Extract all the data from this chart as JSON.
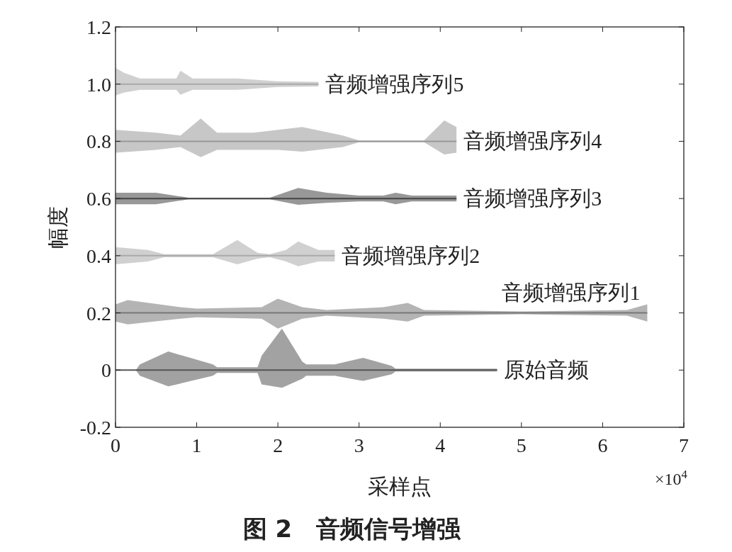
{
  "chart_data": {
    "type": "line",
    "title": "图 2　音频信号增强",
    "xlabel": "采样点",
    "ylabel": "幅度",
    "annotations": [
      "×10$^{4}$"
    ],
    "xlim": [
      0,
      7
    ],
    "ylim": [
      -0.2,
      1.2
    ],
    "xticks": [
      0,
      1,
      2,
      3,
      4,
      5,
      6,
      7
    ],
    "yticks": [
      -0.2,
      0,
      0.2,
      0.4,
      0.6,
      0.8,
      {
        "value": 1,
        "label": "1.0"
      },
      1.2
    ],
    "grid": false,
    "marker": "none",
    "line_style": "solid",
    "series": [
      {
        "name": "原始音频",
        "color": "#555555",
        "x": [
          0,
          0.25,
          0.3,
          0.65,
          1.2,
          1.25,
          1.75,
          1.8,
          2.05,
          2.3,
          2.35,
          2.7,
          3.05,
          3.4,
          3.45,
          4.7
        ],
        "values": [
          0,
          0,
          0,
          0,
          0,
          0,
          0,
          0,
          0,
          0,
          0,
          0,
          0,
          0,
          0,
          0
        ],
        "upper": [
          0,
          0,
          0.02,
          0.065,
          0.02,
          0.01,
          0.01,
          0.05,
          0.145,
          0.03,
          0.02,
          0.02,
          0.043,
          0.015,
          0.005,
          0.005
        ],
        "lower": [
          0,
          0,
          -0.02,
          -0.057,
          -0.02,
          -0.01,
          -0.01,
          -0.05,
          -0.062,
          -0.03,
          -0.02,
          -0.02,
          -0.038,
          -0.015,
          -0.005,
          -0.005
        ]
      },
      {
        "name": "音频增强序列1",
        "color": "#777777",
        "x": [
          0,
          0.15,
          0.8,
          1,
          1.8,
          2,
          2.3,
          2.6,
          3.3,
          3.6,
          3.8,
          5,
          6.3,
          6.55
        ],
        "values": [
          0.2,
          0.2,
          0.2,
          0.2,
          0.2,
          0.2,
          0.2,
          0.2,
          0.2,
          0.2,
          0.2,
          0.2,
          0.2,
          0.2
        ],
        "upper": [
          0.23,
          0.245,
          0.22,
          0.215,
          0.22,
          0.25,
          0.22,
          0.21,
          0.22,
          0.235,
          0.21,
          0.205,
          0.21,
          0.23
        ],
        "lower": [
          0.17,
          0.16,
          0.18,
          0.185,
          0.18,
          0.145,
          0.18,
          0.19,
          0.18,
          0.17,
          0.19,
          0.195,
          0.19,
          0.17
        ]
      },
      {
        "name": "音频增强序列2",
        "color": "#aaaaaa",
        "x": [
          0,
          0.4,
          0.6,
          1.2,
          1.5,
          1.75,
          1.9,
          2.1,
          2.25,
          2.5,
          2.7
        ],
        "values": [
          0.4,
          0.4,
          0.4,
          0.4,
          0.4,
          0.4,
          0.4,
          0.4,
          0.4,
          0.4,
          0.4
        ],
        "upper": [
          0.43,
          0.42,
          0.405,
          0.405,
          0.455,
          0.41,
          0.405,
          0.42,
          0.45,
          0.42,
          0.42
        ],
        "lower": [
          0.37,
          0.38,
          0.395,
          0.395,
          0.37,
          0.39,
          0.395,
          0.38,
          0.363,
          0.38,
          0.38
        ]
      },
      {
        "name": "音频增强序列3",
        "color": "#444444",
        "x": [
          0,
          0.5,
          0.9,
          1.9,
          2.25,
          2.6,
          3,
          3.3,
          3.45,
          3.65,
          4.2
        ],
        "values": [
          0.6,
          0.6,
          0.6,
          0.6,
          0.6,
          0.6,
          0.6,
          0.6,
          0.6,
          0.6,
          0.6
        ],
        "upper": [
          0.62,
          0.62,
          0.603,
          0.603,
          0.637,
          0.62,
          0.61,
          0.61,
          0.62,
          0.61,
          0.61
        ],
        "lower": [
          0.58,
          0.58,
          0.597,
          0.597,
          0.578,
          0.585,
          0.59,
          0.59,
          0.58,
          0.59,
          0.59
        ]
      },
      {
        "name": "音频增强序列4",
        "color": "#999999",
        "x": [
          0,
          0.5,
          0.8,
          1.05,
          1.25,
          1.7,
          2,
          2.3,
          2.8,
          3,
          3.8,
          4.05,
          4.2
        ],
        "values": [
          0.8,
          0.8,
          0.8,
          0.8,
          0.8,
          0.8,
          0.8,
          0.8,
          0.8,
          0.8,
          0.8,
          0.8,
          0.8
        ],
        "upper": [
          0.84,
          0.83,
          0.82,
          0.88,
          0.83,
          0.83,
          0.84,
          0.85,
          0.82,
          0.803,
          0.803,
          0.873,
          0.85
        ],
        "lower": [
          0.76,
          0.77,
          0.78,
          0.745,
          0.77,
          0.77,
          0.77,
          0.764,
          0.78,
          0.797,
          0.797,
          0.754,
          0.76
        ]
      },
      {
        "name": "音频增强序列5",
        "color": "#aaaaaa",
        "x": [
          0,
          0.1,
          0.3,
          0.75,
          0.8,
          0.95,
          1.5,
          2,
          2.5
        ],
        "values": [
          1,
          1,
          1,
          1,
          1,
          1,
          1,
          1,
          1
        ],
        "upper": [
          1.057,
          1.04,
          1.02,
          1.02,
          1.047,
          1.02,
          1.02,
          1.01,
          1.008
        ],
        "lower": [
          0.96,
          0.97,
          0.98,
          0.98,
          0.963,
          0.98,
          0.98,
          0.99,
          0.992
        ]
      }
    ]
  }
}
